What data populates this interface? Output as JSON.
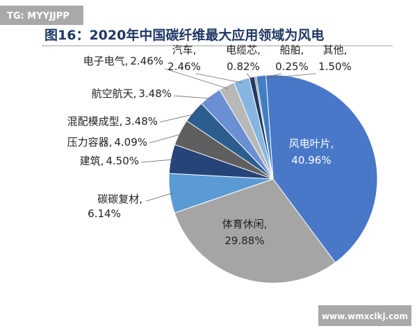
{
  "watermark_top": "TG: MYYJJPP",
  "watermark_bottom": "www.wmxclkj.com",
  "chart_data": {
    "type": "pie",
    "title": "图16：2020年中国碳纤维最大应用领域为风电",
    "categories": [
      "风电叶片,",
      "体育休闲,",
      "碳碳复材,",
      "建筑,",
      "压力容器,",
      "混配模成型,",
      "航空航天,",
      "电子电气,",
      "汽车,",
      "电缆芯,",
      "船舶,",
      "其他,"
    ],
    "values": [
      40.96,
      29.88,
      6.14,
      4.5,
      4.09,
      3.48,
      3.48,
      2.46,
      2.46,
      0.82,
      0.25,
      1.5
    ],
    "value_labels": [
      "40.96%",
      "29.88%",
      "6.14%",
      "4.50%",
      "4.09%",
      "3.48%",
      "3.48%",
      "2.46%",
      "2.46%",
      "0.82%",
      "0.25%",
      "1.50%"
    ],
    "colors": [
      "#4a78c8",
      "#a5a5a5",
      "#5b9bd5",
      "#264478",
      "#5f5f5f",
      "#2c5d8f",
      "#6a8fd2",
      "#b8b8b8",
      "#86b6e0",
      "#203864",
      "#7f7f7f",
      "#3f7fc4"
    ]
  }
}
